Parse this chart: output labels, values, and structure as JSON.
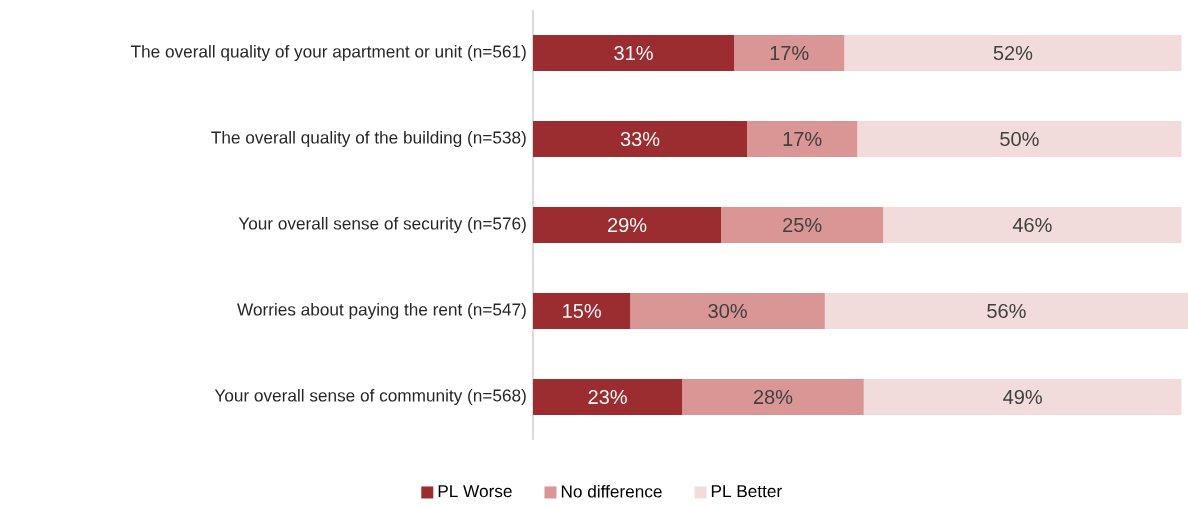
{
  "chart_data": {
    "type": "bar",
    "orientation": "horizontal",
    "stacked": true,
    "legend": "bottom",
    "categories": [
      "The overall quality of your apartment or unit (n=561)",
      "The overall quality of the building (n=538)",
      "Your overall sense of security (n=576)",
      "Worries about paying the rent (n=547)",
      "Your overall sense of community (n=568)"
    ],
    "series": [
      {
        "name": "PL Worse",
        "color": "#9b2d30",
        "values": [
          31,
          33,
          29,
          15,
          23
        ],
        "value_labels": [
          "31%",
          "33%",
          "29%",
          "15%",
          "23%"
        ]
      },
      {
        "name": "No difference",
        "color": "#d99694",
        "values": [
          17,
          17,
          25,
          30,
          28
        ],
        "value_labels": [
          "17%",
          "17%",
          "25%",
          "30%",
          "28%"
        ]
      },
      {
        "name": "PL Better",
        "color": "#f2dcdb",
        "values": [
          52,
          50,
          46,
          56,
          49
        ],
        "value_labels": [
          "52%",
          "50%",
          "46%",
          "56%",
          "49%"
        ]
      }
    ]
  }
}
